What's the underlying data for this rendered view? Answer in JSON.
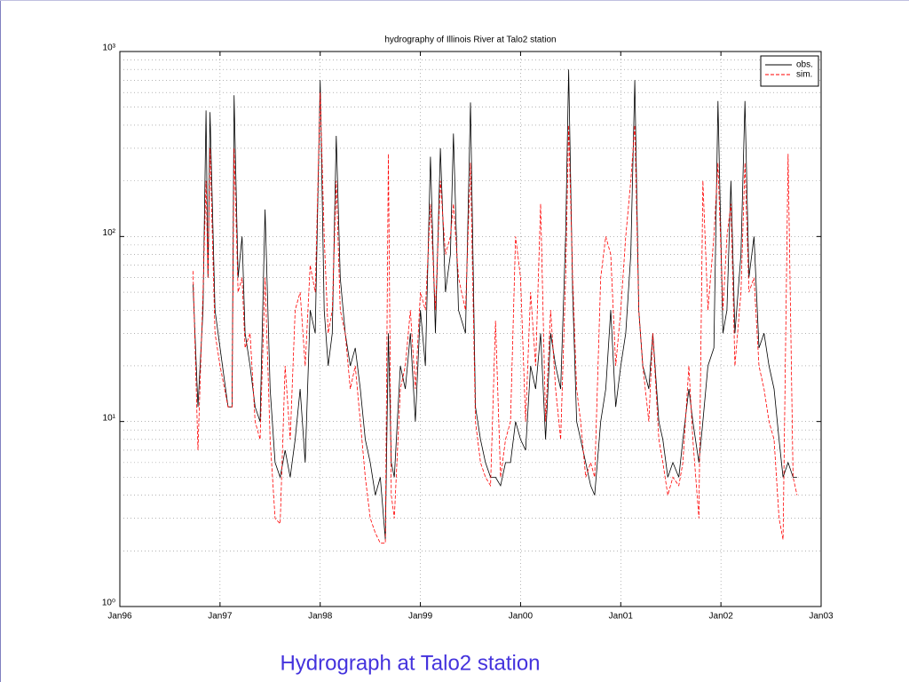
{
  "chart_data": {
    "type": "line",
    "title": "hydrography of Illinois River at Talo2 station",
    "caption": "Hydrograph at Talo2 station",
    "log_y": true,
    "grid": true,
    "legend": "upper right",
    "xlim": [
      1996,
      2003
    ],
    "xticks": [
      {
        "value": 1996,
        "label": "Jan96"
      },
      {
        "value": 1997,
        "label": "Jan97"
      },
      {
        "value": 1998,
        "label": "Jan98"
      },
      {
        "value": 1999,
        "label": "Jan99"
      },
      {
        "value": 2000,
        "label": "Jan00"
      },
      {
        "value": 2001,
        "label": "Jan01"
      },
      {
        "value": 2002,
        "label": "Jan02"
      },
      {
        "value": 2003,
        "label": "Jan03"
      }
    ],
    "ylim": [
      1,
      1000
    ],
    "yticks": [
      {
        "value": 1,
        "label": "10⁰"
      },
      {
        "value": 10,
        "label": "10¹"
      },
      {
        "value": 100,
        "label": "10²"
      },
      {
        "value": 1000,
        "label": "10³"
      }
    ],
    "x": [
      1996.73,
      1996.78,
      1996.83,
      1996.86,
      1996.88,
      1996.9,
      1996.95,
      1997.0,
      1997.08,
      1997.12,
      1997.14,
      1997.18,
      1997.22,
      1997.25,
      1997.3,
      1997.35,
      1997.4,
      1997.45,
      1997.5,
      1997.55,
      1997.6,
      1997.65,
      1997.7,
      1997.75,
      1997.8,
      1997.85,
      1997.9,
      1997.95,
      1998.0,
      1998.04,
      1998.08,
      1998.12,
      1998.16,
      1998.2,
      1998.25,
      1998.3,
      1998.35,
      1998.4,
      1998.45,
      1998.5,
      1998.55,
      1998.6,
      1998.65,
      1998.68,
      1998.71,
      1998.74,
      1998.8,
      1998.85,
      1998.9,
      1998.95,
      1999.0,
      1999.05,
      1999.1,
      1999.15,
      1999.2,
      1999.25,
      1999.3,
      1999.33,
      1999.38,
      1999.45,
      1999.5,
      1999.55,
      1999.6,
      1999.65,
      1999.7,
      1999.75,
      1999.8,
      1999.85,
      1999.9,
      1999.95,
      2000.0,
      2000.05,
      2000.1,
      2000.15,
      2000.2,
      2000.25,
      2000.3,
      2000.35,
      2000.4,
      2000.45,
      2000.48,
      2000.52,
      2000.56,
      2000.6,
      2000.65,
      2000.7,
      2000.74,
      2000.8,
      2000.85,
      2000.9,
      2000.95,
      2001.0,
      2001.05,
      2001.1,
      2001.14,
      2001.18,
      2001.22,
      2001.28,
      2001.32,
      2001.38,
      2001.42,
      2001.47,
      2001.52,
      2001.58,
      2001.62,
      2001.68,
      2001.72,
      2001.78,
      2001.82,
      2001.87,
      2001.93,
      2001.97,
      2002.02,
      2002.06,
      2002.1,
      2002.14,
      2002.2,
      2002.24,
      2002.28,
      2002.33,
      2002.38,
      2002.43,
      2002.48,
      2002.53,
      2002.58,
      2002.62,
      2002.67,
      2002.72,
      2002.76
    ],
    "series": [
      {
        "name": "obs.",
        "color": "#000000",
        "style": "solid",
        "values": [
          55,
          12,
          40,
          480,
          60,
          470,
          40,
          25,
          12,
          12,
          580,
          60,
          100,
          30,
          20,
          12,
          10,
          140,
          15,
          6,
          5,
          7,
          5,
          8,
          15,
          6,
          40,
          30,
          700,
          40,
          20,
          30,
          350,
          60,
          30,
          20,
          25,
          15,
          8,
          6,
          4,
          5,
          2.3,
          30,
          6,
          5,
          20,
          15,
          30,
          10,
          40,
          20,
          270,
          30,
          300,
          50,
          80,
          360,
          40,
          30,
          530,
          12,
          8,
          6,
          5,
          5,
          4.5,
          6,
          6,
          10,
          8,
          7,
          20,
          15,
          30,
          8,
          30,
          20,
          15,
          100,
          800,
          50,
          10,
          8,
          6,
          4.5,
          4,
          10,
          15,
          40,
          12,
          20,
          30,
          80,
          700,
          40,
          20,
          15,
          30,
          10,
          8,
          5,
          6,
          5,
          8,
          15,
          10,
          6,
          10,
          20,
          25,
          540,
          30,
          40,
          200,
          30,
          80,
          540,
          60,
          100,
          25,
          30,
          20,
          15,
          8,
          5,
          6,
          5,
          5
        ]
      },
      {
        "name": "sim.",
        "color": "#ff0000",
        "style": "dashed",
        "values": [
          65,
          7,
          50,
          200,
          60,
          300,
          30,
          20,
          12,
          12,
          300,
          50,
          60,
          25,
          30,
          10,
          8,
          60,
          8,
          3,
          2.8,
          20,
          8,
          40,
          50,
          20,
          70,
          50,
          600,
          100,
          30,
          40,
          200,
          40,
          30,
          15,
          20,
          10,
          5,
          3,
          2.5,
          2.2,
          2.2,
          280,
          4,
          3,
          15,
          20,
          40,
          15,
          50,
          40,
          150,
          40,
          200,
          80,
          100,
          150,
          60,
          40,
          250,
          10,
          6,
          5,
          4.5,
          35,
          5,
          8,
          10,
          100,
          60,
          10,
          50,
          20,
          150,
          10,
          40,
          15,
          8,
          60,
          400,
          60,
          15,
          10,
          5,
          6,
          5,
          60,
          100,
          80,
          20,
          40,
          100,
          200,
          400,
          40,
          20,
          10,
          30,
          8,
          6,
          4,
          5,
          4.5,
          6,
          20,
          8,
          3,
          200,
          40,
          100,
          250,
          40,
          100,
          150,
          20,
          50,
          250,
          50,
          60,
          20,
          15,
          10,
          8,
          3,
          2.3,
          280,
          5,
          4
        ]
      }
    ]
  }
}
